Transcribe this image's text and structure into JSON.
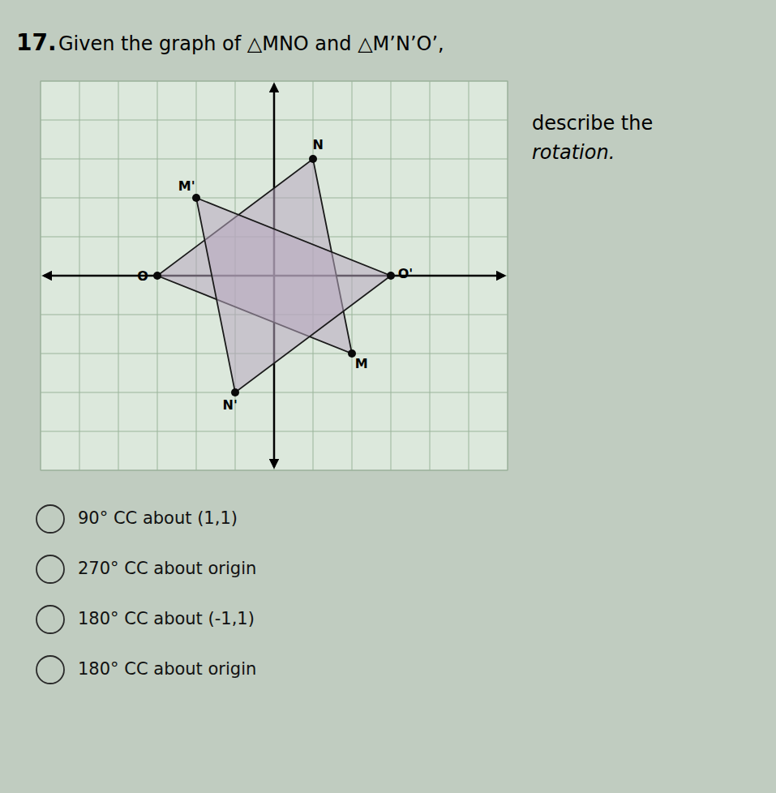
{
  "chart_data": {
    "type": "polygon",
    "title": "Given the graph of △MNO and △M’N’O’,",
    "annotations": [
      "17.",
      "describe the",
      "rotation."
    ],
    "choices": [
      "90° CC about (1,1)",
      "270° CC about origin",
      "180° CC about (-1,1)",
      "180° CC about origin"
    ],
    "series": [
      {
        "labels": [
          "M",
          "N",
          "O"
        ],
        "x": [
          2,
          1,
          -3
        ],
        "values": [
          -2,
          3,
          0
        ],
        "color": "#b8a8c0"
      },
      {
        "labels": [
          "M'",
          "N'",
          "O'"
        ],
        "x": [
          -2,
          -1,
          3
        ],
        "values": [
          2,
          -3,
          0
        ],
        "color": "#b8a8c0"
      }
    ],
    "xlim": [
      -6,
      6
    ],
    "ylim": [
      -5,
      5
    ],
    "xticks": [
      -6,
      -5,
      -4,
      -3,
      -2,
      -1,
      0,
      1,
      2,
      3,
      4,
      5,
      6
    ],
    "yticks": [
      -5,
      -4,
      -3,
      -2,
      -1,
      0,
      1,
      2,
      3,
      4,
      5
    ],
    "grid": true,
    "tick_labels": false
  }
}
